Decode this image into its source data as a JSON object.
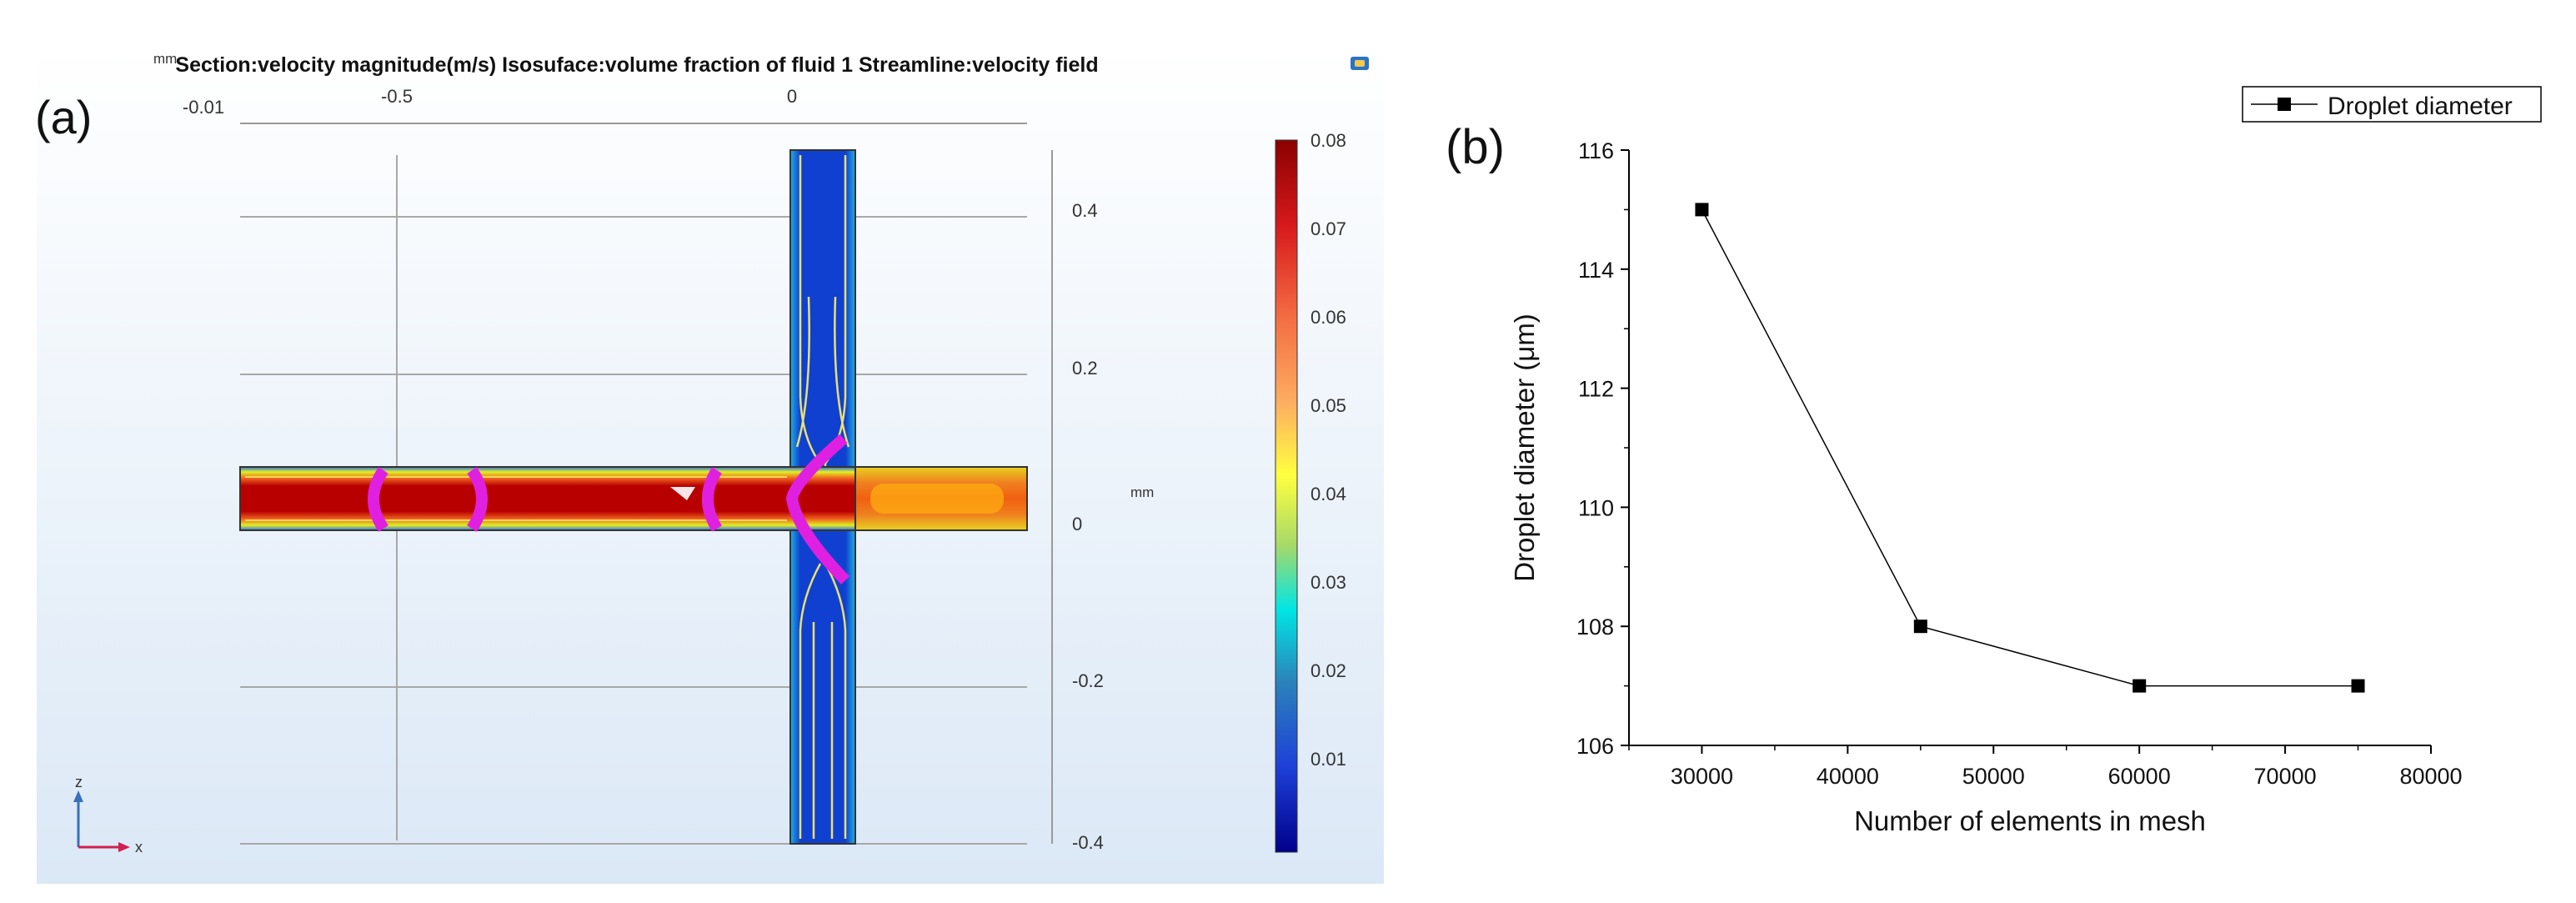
{
  "panel_a": {
    "label": "(a)",
    "title": "Section:velocity magnitude(m/s) Isosuface:volume fraction of fluid 1 Streamline:velocity field",
    "unit_top_left": "mm",
    "x_ticks": [
      "-0.01",
      "-0.5",
      "0"
    ],
    "z_ticks": [
      "0.4",
      "0.2",
      "0",
      "-0.2",
      "-0.4"
    ],
    "z_axis_unit": "mm",
    "colorbar_ticks": [
      "0.08",
      "0.07",
      "0.06",
      "0.05",
      "0.04",
      "0.03",
      "0.02",
      "0.01"
    ],
    "colorbar_colors": [
      "#8b0000",
      "#d7191c",
      "#f46d43",
      "#fdae61",
      "#ffff40",
      "#a6d96a",
      "#00e5e5",
      "#2b83ba",
      "#1e40d8",
      "#00008b"
    ],
    "triad_z": "z",
    "triad_x": "x"
  },
  "chart_data": {
    "type": "line",
    "panel_label": "(b)",
    "title": "",
    "xlabel": "Number of elements in mesh",
    "ylabel": "Droplet diameter (μm)",
    "xlim": [
      25000,
      80000
    ],
    "ylim": [
      106,
      116
    ],
    "x_ticks": [
      30000,
      40000,
      50000,
      60000,
      70000,
      80000
    ],
    "y_ticks": [
      106,
      108,
      110,
      112,
      114,
      116
    ],
    "grid": false,
    "legend_position": "top-right",
    "series": [
      {
        "name": "Droplet diameter",
        "marker": "square",
        "color": "#000000",
        "x": [
          30000,
          45000,
          60000,
          75000
        ],
        "y": [
          115,
          108,
          107,
          107
        ]
      }
    ]
  }
}
